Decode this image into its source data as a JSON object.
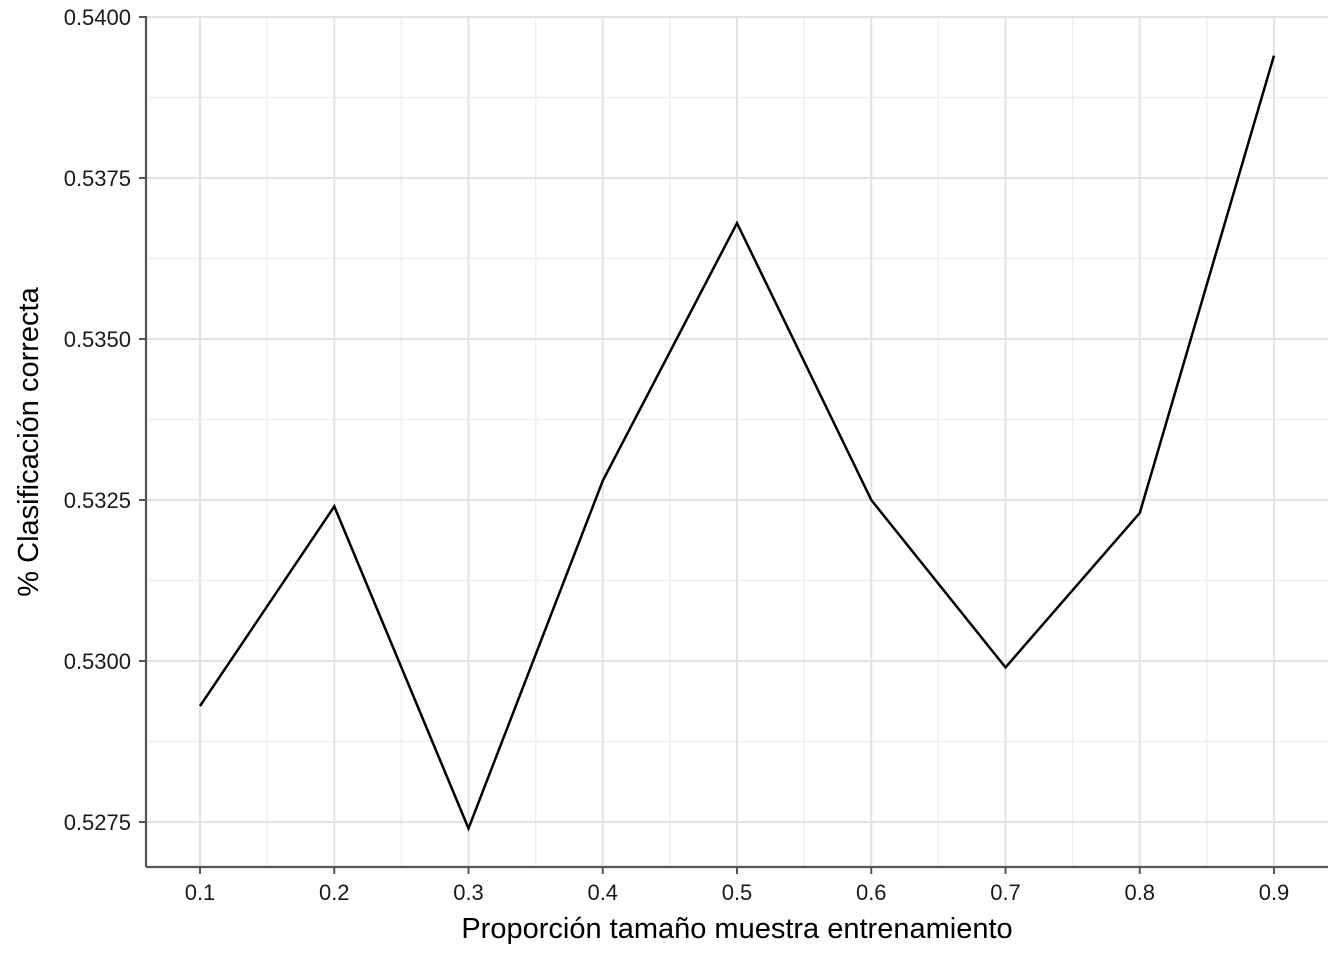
{
  "chart_data": {
    "type": "line",
    "title": "",
    "xlabel": "Proporción tamaño muestra entrenamiento",
    "ylabel": "% Clasificación correcta",
    "x": [
      0.1,
      0.2,
      0.3,
      0.4,
      0.5,
      0.6,
      0.7,
      0.8,
      0.9
    ],
    "series": [
      {
        "values": [
          0.5293,
          0.5324,
          0.5274,
          0.5328,
          0.5368,
          0.5325,
          0.5299,
          0.5323,
          0.5394
        ]
      }
    ],
    "xlim": [
      0.06,
      0.96
    ],
    "ylim": [
      0.5268,
      0.54
    ],
    "xticks": [
      0.1,
      0.2,
      0.3,
      0.4,
      0.5,
      0.6,
      0.7,
      0.8,
      0.9
    ],
    "xtick_labels": [
      "0.1",
      "0.2",
      "0.3",
      "0.4",
      "0.5",
      "0.6",
      "0.7",
      "0.8",
      "0.9"
    ],
    "yticks": [
      0.5275,
      0.53,
      0.5325,
      0.535,
      0.5375,
      0.54
    ],
    "ytick_labels": [
      "0.5275",
      "0.5300",
      "0.5325",
      "0.5350",
      "0.5375",
      "0.5400"
    ],
    "grid": true,
    "line_color": "#000000",
    "grid_color": "#e3e3e3"
  }
}
